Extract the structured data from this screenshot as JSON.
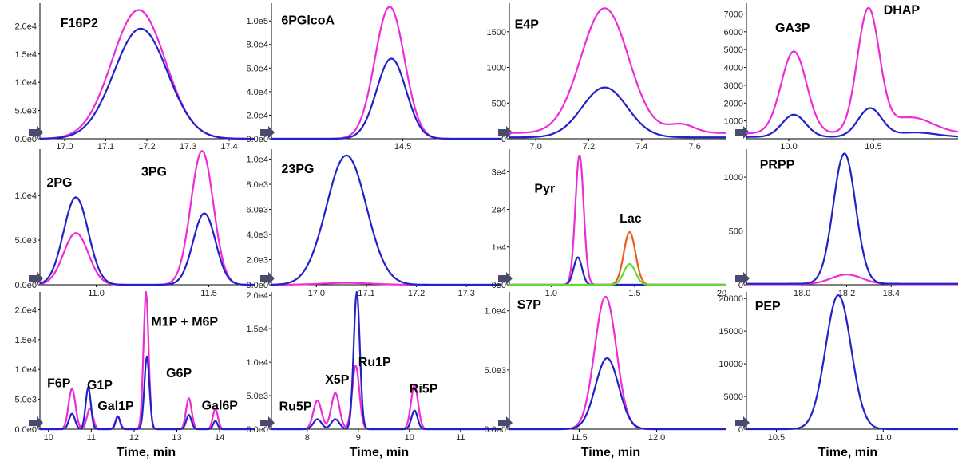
{
  "colors": {
    "magenta": "#ee2cd6",
    "blue": "#2222c8",
    "orange": "#ee5a1e",
    "green": "#5fdc2e",
    "axis": "#000000",
    "marker": "#4a4a6e"
  },
  "xlabel_text": "Time, min",
  "chart_data": [
    {
      "type": "line",
      "xlim": [
        16.94,
        17.46
      ],
      "ylim": [
        0,
        24000
      ],
      "xticks": [
        {
          "v": 17.0,
          "t": "17.0"
        },
        {
          "v": 17.1,
          "t": "17.1"
        },
        {
          "v": 17.2,
          "t": "17.2"
        },
        {
          "v": 17.3,
          "t": "17.3"
        },
        {
          "v": 17.4,
          "t": "17.4"
        }
      ],
      "yticks": [
        {
          "v": 0,
          "t": "0.0e0"
        },
        {
          "v": 5000,
          "t": "5.0e3"
        },
        {
          "v": 10000,
          "t": "1.0e4"
        },
        {
          "v": 15000,
          "t": "1.5e4"
        },
        {
          "v": 20000,
          "t": "2.0e4"
        }
      ],
      "series": [
        {
          "name": "magenta",
          "color": "magenta",
          "peaks": [
            {
              "c": 17.18,
              "h": 22800,
              "w": 0.065
            }
          ]
        },
        {
          "name": "blue",
          "color": "blue",
          "peaks": [
            {
              "c": 17.185,
              "h": 19500,
              "w": 0.065
            }
          ]
        }
      ],
      "labels": [
        {
          "text": "F16P2",
          "x": 16.99,
          "y": 19800
        }
      ]
    },
    {
      "type": "line",
      "xlim": [
        14.1,
        14.8
      ],
      "ylim": [
        0,
        115000
      ],
      "xticks": [
        {
          "v": 14.5,
          "t": "14.5"
        }
      ],
      "yticks": [
        {
          "v": 0,
          "t": "0.0e0"
        },
        {
          "v": 20000,
          "t": "2.0e4"
        },
        {
          "v": 40000,
          "t": "4.0e4"
        },
        {
          "v": 60000,
          "t": "6.0e4"
        },
        {
          "v": 80000,
          "t": "8.0e4"
        },
        {
          "v": 100000,
          "t": "1.0e5"
        }
      ],
      "series": [
        {
          "name": "magenta",
          "color": "magenta",
          "peaks": [
            {
              "c": 14.46,
              "h": 112000,
              "w": 0.045
            }
          ]
        },
        {
          "name": "blue",
          "color": "blue",
          "peaks": [
            {
              "c": 14.465,
              "h": 68000,
              "w": 0.045
            }
          ]
        }
      ],
      "labels": [
        {
          "text": "6PGlcoA",
          "x": 14.13,
          "y": 97000
        }
      ]
    },
    {
      "type": "line",
      "xlim": [
        6.9,
        7.72
      ],
      "ylim": [
        0,
        1900
      ],
      "xticks": [
        {
          "v": 7.0,
          "t": "7.0"
        },
        {
          "v": 7.2,
          "t": "7.2"
        },
        {
          "v": 7.4,
          "t": "7.4"
        },
        {
          "v": 7.6,
          "t": "7.6"
        }
      ],
      "yticks": [
        {
          "v": 0,
          "t": "0"
        },
        {
          "v": 500,
          "t": "500"
        },
        {
          "v": 1000,
          "t": "1000"
        },
        {
          "v": 1500,
          "t": "1500"
        }
      ],
      "series": [
        {
          "name": "magenta",
          "color": "magenta",
          "base": 80,
          "peaks": [
            {
              "c": 7.26,
              "h": 1750,
              "w": 0.09
            },
            {
              "c": 7.55,
              "h": 120,
              "w": 0.05
            }
          ]
        },
        {
          "name": "blue",
          "color": "blue",
          "base": 20,
          "peaks": [
            {
              "c": 7.26,
              "h": 700,
              "w": 0.085
            }
          ]
        }
      ],
      "labels": [
        {
          "text": "E4P",
          "x": 6.92,
          "y": 1550
        }
      ]
    },
    {
      "type": "line",
      "xlim": [
        9.75,
        11.0
      ],
      "ylim": [
        0,
        7600
      ],
      "xticks": [
        {
          "v": 10.0,
          "t": "10.0"
        },
        {
          "v": 10.5,
          "t": "10.5"
        }
      ],
      "yticks": [
        {
          "v": 1000,
          "t": "1000"
        },
        {
          "v": 2000,
          "t": "2000"
        },
        {
          "v": 3000,
          "t": "3000"
        },
        {
          "v": 4000,
          "t": "4000"
        },
        {
          "v": 5000,
          "t": "5000"
        },
        {
          "v": 6000,
          "t": "6000"
        },
        {
          "v": 7000,
          "t": "7000"
        }
      ],
      "series": [
        {
          "name": "magenta",
          "color": "magenta",
          "base": 300,
          "peaks": [
            {
              "c": 10.03,
              "h": 4600,
              "w": 0.075
            },
            {
              "c": 10.47,
              "h": 6900,
              "w": 0.065
            },
            {
              "c": 10.72,
              "h": 900,
              "w": 0.13
            }
          ]
        },
        {
          "name": "blue",
          "color": "blue",
          "base": 100,
          "peaks": [
            {
              "c": 10.03,
              "h": 1250,
              "w": 0.07
            },
            {
              "c": 10.48,
              "h": 1600,
              "w": 0.07
            },
            {
              "c": 10.75,
              "h": 250,
              "w": 0.12
            }
          ]
        }
      ],
      "labels": [
        {
          "text": "GA3P",
          "x": 9.92,
          "y": 6000
        },
        {
          "text": "DHAP",
          "x": 10.56,
          "y": 7000
        }
      ]
    },
    {
      "type": "line",
      "xlim": [
        10.75,
        11.7
      ],
      "ylim": [
        0,
        15200
      ],
      "xticks": [
        {
          "v": 11.0,
          "t": "11.0"
        },
        {
          "v": 11.5,
          "t": "11.5"
        }
      ],
      "yticks": [
        {
          "v": 0,
          "t": "0.0e0"
        },
        {
          "v": 5000,
          "t": "5.0e3"
        },
        {
          "v": 10000,
          "t": "1.0e4"
        }
      ],
      "series": [
        {
          "name": "magenta",
          "color": "magenta",
          "peaks": [
            {
              "c": 10.91,
              "h": 5800,
              "w": 0.055
            },
            {
              "c": 11.47,
              "h": 15000,
              "w": 0.05
            }
          ]
        },
        {
          "name": "blue",
          "color": "blue",
          "peaks": [
            {
              "c": 10.91,
              "h": 9800,
              "w": 0.055
            },
            {
              "c": 11.48,
              "h": 8000,
              "w": 0.05
            }
          ]
        }
      ],
      "labels": [
        {
          "text": "2PG",
          "x": 10.78,
          "y": 11000
        },
        {
          "text": "3PG",
          "x": 11.2,
          "y": 12200
        }
      ]
    },
    {
      "type": "line",
      "xlim": [
        16.91,
        17.37
      ],
      "ylim": [
        0,
        10800
      ],
      "xticks": [
        {
          "v": 17.0,
          "t": "17.0"
        },
        {
          "v": 17.1,
          "t": "17.1"
        },
        {
          "v": 17.2,
          "t": "17.2"
        },
        {
          "v": 17.3,
          "t": "17.3"
        }
      ],
      "yticks": [
        {
          "v": 0,
          "t": "0.0e0"
        },
        {
          "v": 2000,
          "t": "2.0e3"
        },
        {
          "v": 4000,
          "t": "4.0e3"
        },
        {
          "v": 6000,
          "t": "6.0e3"
        },
        {
          "v": 8000,
          "t": "8.0e3"
        },
        {
          "v": 10000,
          "t": "1.0e4"
        }
      ],
      "series": [
        {
          "name": "magenta",
          "color": "magenta",
          "peaks": [
            {
              "c": 17.06,
              "h": 150,
              "w": 0.05
            }
          ]
        },
        {
          "name": "blue",
          "color": "blue",
          "peaks": [
            {
              "c": 17.06,
              "h": 10300,
              "w": 0.04
            }
          ]
        }
      ],
      "labels": [
        {
          "text": "23PG",
          "x": 16.93,
          "y": 8900
        }
      ]
    },
    {
      "type": "line",
      "xlim": [
        0.75,
        2.05
      ],
      "ylim": [
        0,
        36000
      ],
      "xticks": [
        {
          "v": 1.0,
          "t": "1.0"
        },
        {
          "v": 1.5,
          "t": "1.5"
        }
      ],
      "extra_tick_label": "20",
      "yticks": [
        {
          "v": 0,
          "t": "0e0"
        },
        {
          "v": 10000,
          "t": "1e4"
        },
        {
          "v": 20000,
          "t": "2e4"
        },
        {
          "v": 30000,
          "t": "3e4"
        }
      ],
      "series": [
        {
          "name": "magenta",
          "color": "magenta",
          "peaks": [
            {
              "c": 1.17,
              "h": 34500,
              "w": 0.025
            }
          ]
        },
        {
          "name": "blue",
          "color": "blue",
          "peaks": [
            {
              "c": 1.16,
              "h": 7300,
              "w": 0.025
            }
          ]
        },
        {
          "name": "orange",
          "color": "orange",
          "peaks": [
            {
              "c": 1.47,
              "h": 14000,
              "w": 0.035
            }
          ]
        },
        {
          "name": "green",
          "color": "green",
          "peaks": [
            {
              "c": 1.47,
              "h": 5500,
              "w": 0.035
            }
          ]
        }
      ],
      "labels": [
        {
          "text": "Pyr",
          "x": 0.9,
          "y": 24500
        },
        {
          "text": "Lac",
          "x": 1.41,
          "y": 16500
        }
      ]
    },
    {
      "type": "line",
      "xlim": [
        17.75,
        18.7
      ],
      "ylim": [
        0,
        1260
      ],
      "xticks": [
        {
          "v": 18.0,
          "t": "18.0"
        },
        {
          "v": 18.2,
          "t": "18.2"
        },
        {
          "v": 18.4,
          "t": "18.4"
        }
      ],
      "yticks": [
        {
          "v": 0,
          "t": "0"
        },
        {
          "v": 500,
          "t": "500"
        },
        {
          "v": 1000,
          "t": "1000"
        }
      ],
      "series": [
        {
          "name": "magenta",
          "color": "magenta",
          "base": 5,
          "peaks": [
            {
              "c": 18.2,
              "h": 90,
              "w": 0.07
            }
          ]
        },
        {
          "name": "blue",
          "color": "blue",
          "base": 10,
          "peaks": [
            {
              "c": 18.19,
              "h": 1210,
              "w": 0.05
            }
          ]
        }
      ],
      "labels": [
        {
          "text": "PRPP",
          "x": 17.81,
          "y": 1080
        }
      ]
    },
    {
      "type": "line",
      "xlim": [
        9.8,
        14.8
      ],
      "ylim": [
        0,
        23000
      ],
      "xticks": [
        {
          "v": 10,
          "t": "10"
        },
        {
          "v": 11,
          "t": "11"
        },
        {
          "v": 12,
          "t": "12"
        },
        {
          "v": 13,
          "t": "13"
        },
        {
          "v": 14,
          "t": "14"
        }
      ],
      "yticks": [
        {
          "v": 0,
          "t": "0.0e0"
        },
        {
          "v": 5000,
          "t": "5.0e3"
        },
        {
          "v": 10000,
          "t": "1.0e4"
        },
        {
          "v": 15000,
          "t": "1.5e4"
        },
        {
          "v": 20000,
          "t": "2.0e4"
        }
      ],
      "series": [
        {
          "name": "magenta",
          "color": "magenta",
          "peaks": [
            {
              "c": 10.55,
              "h": 6800,
              "w": 0.08
            },
            {
              "c": 10.97,
              "h": 3500,
              "w": 0.07
            },
            {
              "c": 11.62,
              "h": 2000,
              "w": 0.06
            },
            {
              "c": 12.28,
              "h": 23000,
              "w": 0.06
            },
            {
              "c": 13.28,
              "h": 5200,
              "w": 0.065
            },
            {
              "c": 13.9,
              "h": 3400,
              "w": 0.06
            }
          ]
        },
        {
          "name": "blue",
          "color": "blue",
          "peaks": [
            {
              "c": 10.55,
              "h": 2600,
              "w": 0.07
            },
            {
              "c": 10.93,
              "h": 7000,
              "w": 0.06
            },
            {
              "c": 11.62,
              "h": 2200,
              "w": 0.05
            },
            {
              "c": 12.3,
              "h": 12200,
              "w": 0.06
            },
            {
              "c": 13.28,
              "h": 2400,
              "w": 0.06
            },
            {
              "c": 13.9,
              "h": 1400,
              "w": 0.05
            }
          ]
        }
      ],
      "labels": [
        {
          "text": "F6P",
          "x": 9.97,
          "y": 7000
        },
        {
          "text": "G1P",
          "x": 10.9,
          "y": 6700
        },
        {
          "text": "Gal1P",
          "x": 11.15,
          "y": 3200
        },
        {
          "text": "M1P + M6P",
          "x": 12.4,
          "y": 17300
        },
        {
          "text": "G6P",
          "x": 12.75,
          "y": 8700
        },
        {
          "text": "Gal6P",
          "x": 13.58,
          "y": 3300
        }
      ]
    },
    {
      "type": "line",
      "xlim": [
        7.3,
        11.8
      ],
      "ylim": [
        0,
        20500
      ],
      "xticks": [
        {
          "v": 8,
          "t": "8"
        },
        {
          "v": 9,
          "t": "9"
        },
        {
          "v": 10,
          "t": "10"
        },
        {
          "v": 11,
          "t": "11"
        }
      ],
      "yticks": [
        {
          "v": 0,
          "t": "0.0e0"
        },
        {
          "v": 5000,
          "t": "5.0e3"
        },
        {
          "v": 10000,
          "t": "1.0e4"
        },
        {
          "v": 15000,
          "t": "1.5e4"
        },
        {
          "v": 20000,
          "t": "2.0e4"
        }
      ],
      "series": [
        {
          "name": "magenta",
          "color": "magenta",
          "peaks": [
            {
              "c": 8.2,
              "h": 4300,
              "w": 0.08
            },
            {
              "c": 8.55,
              "h": 5400,
              "w": 0.08
            },
            {
              "c": 8.95,
              "h": 9500,
              "w": 0.07
            },
            {
              "c": 10.1,
              "h": 6500,
              "w": 0.07
            }
          ]
        },
        {
          "name": "blue",
          "color": "blue",
          "peaks": [
            {
              "c": 8.2,
              "h": 1500,
              "w": 0.08
            },
            {
              "c": 8.55,
              "h": 1500,
              "w": 0.08
            },
            {
              "c": 8.97,
              "h": 20500,
              "w": 0.06
            },
            {
              "c": 10.1,
              "h": 2800,
              "w": 0.06
            }
          ]
        }
      ],
      "labels": [
        {
          "text": "Ru5P",
          "x": 7.45,
          "y": 2800
        },
        {
          "text": "X5P",
          "x": 8.35,
          "y": 6800
        },
        {
          "text": "Ru1P",
          "x": 9.0,
          "y": 9400
        },
        {
          "text": "Ri5P",
          "x": 10.0,
          "y": 5400
        }
      ]
    },
    {
      "type": "line",
      "xlim": [
        11.05,
        12.45
      ],
      "ylim": [
        0,
        11600
      ],
      "xticks": [
        {
          "v": 11.5,
          "t": "11.5"
        },
        {
          "v": 12.0,
          "t": "12.0"
        }
      ],
      "yticks": [
        {
          "v": 0,
          "t": "0.0e0"
        },
        {
          "v": 5000,
          "t": "5.0e3"
        },
        {
          "v": 10000,
          "t": "1.0e4"
        }
      ],
      "series": [
        {
          "name": "magenta",
          "color": "magenta",
          "peaks": [
            {
              "c": 11.67,
              "h": 11200,
              "w": 0.07
            }
          ]
        },
        {
          "name": "blue",
          "color": "blue",
          "peaks": [
            {
              "c": 11.68,
              "h": 6000,
              "w": 0.075
            }
          ]
        }
      ],
      "labels": [
        {
          "text": "S7P",
          "x": 11.1,
          "y": 10200
        }
      ]
    },
    {
      "type": "line",
      "xlim": [
        10.36,
        11.35
      ],
      "ylim": [
        0,
        21000
      ],
      "xticks": [
        {
          "v": 10.5,
          "t": "10.5"
        },
        {
          "v": 11.0,
          "t": "11.0"
        }
      ],
      "yticks": [
        {
          "v": 0,
          "t": "0"
        },
        {
          "v": 5000,
          "t": "5000"
        },
        {
          "v": 10000,
          "t": "10000"
        },
        {
          "v": 15000,
          "t": "15000"
        },
        {
          "v": 20000,
          "t": "20000"
        }
      ],
      "series": [
        {
          "name": "blue",
          "color": "blue",
          "peaks": [
            {
              "c": 10.79,
              "h": 20500,
              "w": 0.06
            }
          ]
        }
      ],
      "labels": [
        {
          "text": "PEP",
          "x": 10.4,
          "y": 18200
        }
      ]
    }
  ]
}
